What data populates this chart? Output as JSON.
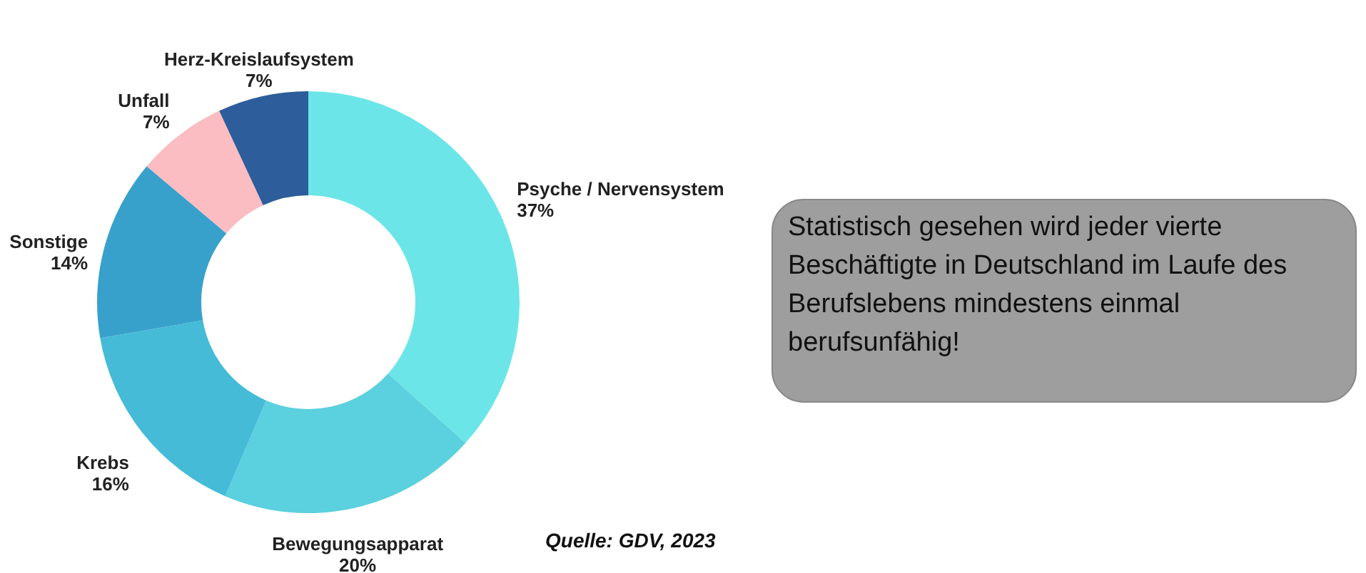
{
  "chart_data": {
    "type": "donut",
    "categories": [
      "Psyche / Nervensystem",
      "Bewegungsapparat",
      "Krebs",
      "Sonstige",
      "Unfall",
      "Herz-Kreislaufsystem"
    ],
    "values": [
      37,
      20,
      16,
      14,
      7,
      7
    ],
    "value_labels": [
      "37%",
      "20%",
      "16%",
      "14%",
      "7%",
      "7%"
    ],
    "colors": [
      "#6ce5e8",
      "#5bd0de",
      "#45bbd8",
      "#38a1cb",
      "#fbbcc2",
      "#2d5d9a"
    ],
    "annotations": [
      "Statistisch gesehen wird jeder vierte Beschäftigte in Deutschland im Laufe des Berufslebens mindestens einmal berufsunfähig!",
      "Quelle: GDV, 2023"
    ]
  }
}
